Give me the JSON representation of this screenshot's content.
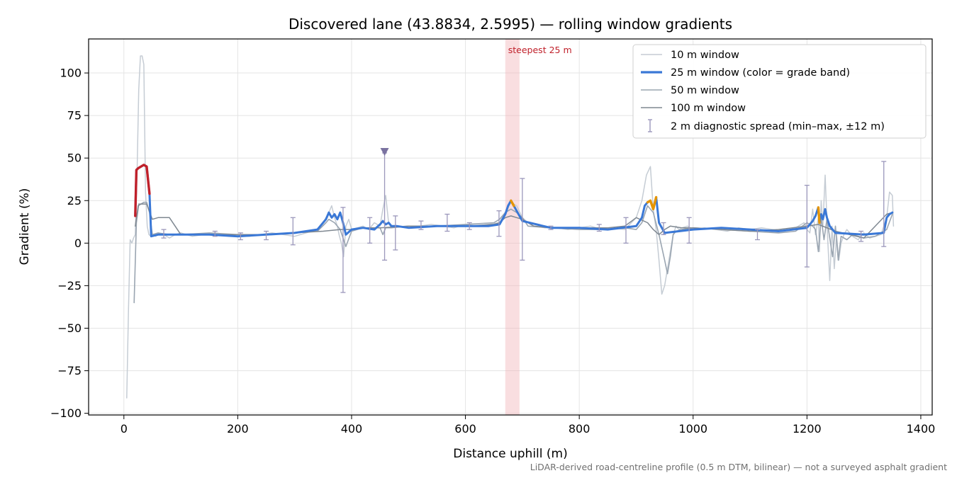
{
  "chart_data": {
    "type": "line",
    "title": "Discovered lane (43.8834, 2.5995) — rolling window gradients",
    "xlabel": "Distance uphill (m)",
    "ylabel": "Gradient (%)",
    "xlim": [
      -62,
      1420
    ],
    "ylim": [
      -101,
      120
    ],
    "xticks": [
      0,
      200,
      400,
      600,
      800,
      1000,
      1200,
      1400
    ],
    "yticks": [
      -100,
      -75,
      -50,
      -25,
      0,
      25,
      50,
      75,
      100
    ],
    "xtick_labels": [
      "0",
      "200",
      "400",
      "600",
      "800",
      "1000",
      "1200",
      "1400"
    ],
    "ytick_labels": [
      "−100",
      "−75",
      "−50",
      "−25",
      "0",
      "25",
      "50",
      "75",
      "100"
    ],
    "grid": true,
    "legend_position": "top-right",
    "footnote": "LiDAR-derived road-centreline profile (0.5 m DTM, bilinear) — not a surveyed asphalt gradient",
    "annotation": {
      "label": "steepest 25 m",
      "x_start": 670,
      "x_end": 695
    },
    "marker": {
      "x": 458,
      "y": 53
    },
    "colors": {
      "w10": "#c5ccd4",
      "w25": "#3a78d6",
      "w50": "#9aa5b1",
      "w100": "#7f8891",
      "steep": "#c0202a",
      "moderate": "#e59400",
      "errorbar": "#9b97bb",
      "band": "#f2b6ba"
    },
    "series": [
      {
        "name": "10 m window",
        "x": [
          5,
          8,
          11,
          14,
          17,
          20,
          23,
          26,
          29,
          32,
          35,
          38,
          41,
          44,
          48,
          52,
          56,
          60,
          70,
          80,
          90,
          100,
          110,
          120,
          140,
          160,
          180,
          200,
          220,
          240,
          260,
          280,
          300,
          320,
          340,
          350,
          360,
          365,
          370,
          375,
          378,
          382,
          386,
          390,
          395,
          400,
          410,
          420,
          430,
          440,
          450,
          455,
          460,
          465,
          470,
          480,
          500,
          520,
          540,
          560,
          580,
          600,
          620,
          640,
          660,
          670,
          680,
          690,
          700,
          710,
          720,
          740,
          760,
          780,
          800,
          820,
          840,
          860,
          880,
          900,
          910,
          918,
          925,
          930,
          935,
          940,
          945,
          950,
          955,
          960,
          965,
          970,
          975,
          980,
          990,
          1000,
          1020,
          1040,
          1060,
          1080,
          1100,
          1120,
          1140,
          1160,
          1180,
          1195,
          1200,
          1205,
          1210,
          1215,
          1220,
          1222,
          1225,
          1228,
          1232,
          1236,
          1240,
          1244,
          1248,
          1252,
          1256,
          1260,
          1265,
          1270,
          1280,
          1290,
          1300,
          1310,
          1320,
          1330,
          1340,
          1345,
          1350,
          1352
        ],
        "values": [
          -91,
          -40,
          2,
          0,
          3,
          5,
          40,
          90,
          110,
          110,
          105,
          30,
          10,
          5,
          4,
          5,
          4,
          6,
          5,
          3,
          5,
          6,
          5,
          4,
          5,
          6,
          5,
          4,
          4,
          5,
          6,
          5,
          4,
          6,
          8,
          12,
          18,
          22,
          15,
          10,
          5,
          0,
          -8,
          10,
          14,
          8,
          9,
          10,
          8,
          12,
          10,
          20,
          28,
          12,
          9,
          10,
          9,
          10,
          11,
          10,
          9,
          11,
          10,
          11,
          12,
          18,
          24,
          22,
          15,
          12,
          10,
          9,
          9,
          8,
          9,
          10,
          8,
          9,
          8,
          15,
          25,
          40,
          45,
          20,
          8,
          -10,
          -30,
          -25,
          -15,
          -5,
          5,
          10,
          8,
          9,
          10,
          8,
          9,
          8,
          7,
          9,
          8,
          9,
          8,
          7,
          9,
          12,
          8,
          6,
          20,
          5,
          15,
          -5,
          25,
          10,
          40,
          5,
          -22,
          10,
          -15,
          5,
          -10,
          0,
          5,
          8,
          4,
          2,
          6,
          3,
          4,
          5,
          15,
          30,
          28,
          10
        ]
      },
      {
        "name": "25 m window (color = grade band)",
        "x": [
          20,
          22,
          25,
          30,
          35,
          40,
          45,
          48,
          60,
          80,
          100,
          150,
          200,
          250,
          300,
          340,
          355,
          360,
          365,
          370,
          375,
          380,
          385,
          390,
          400,
          420,
          440,
          450,
          455,
          460,
          465,
          470,
          480,
          500,
          550,
          600,
          640,
          660,
          670,
          675,
          680,
          685,
          690,
          695,
          700,
          750,
          800,
          850,
          900,
          910,
          915,
          920,
          925,
          930,
          935,
          940,
          950,
          1000,
          1050,
          1100,
          1150,
          1200,
          1210,
          1215,
          1220,
          1222,
          1225,
          1228,
          1232,
          1235,
          1240,
          1250,
          1300,
          1335,
          1340,
          1345,
          1350
        ],
        "values": [
          16,
          43,
          44,
          45,
          46,
          45,
          29,
          4,
          5,
          5,
          5,
          5,
          4,
          5,
          6,
          8,
          14,
          18,
          15,
          17,
          14,
          18,
          12,
          5,
          8,
          9,
          8,
          11,
          13,
          11,
          12,
          10,
          10,
          9,
          10,
          10,
          10,
          11,
          17,
          22,
          25,
          22,
          19,
          16,
          13,
          9,
          9,
          8,
          10,
          15,
          22,
          24,
          25,
          20,
          27,
          12,
          6,
          8,
          9,
          8,
          7,
          9,
          13,
          16,
          21,
          12,
          17,
          14,
          20,
          15,
          10,
          6,
          5,
          6,
          15,
          17,
          18
        ],
        "band": [
          {
            "x_from": 20,
            "x_to": 45,
            "level": "steep"
          },
          {
            "x_from": 677,
            "x_to": 686,
            "level": "moderate"
          },
          {
            "x_from": 920,
            "x_to": 935,
            "level": "moderate"
          },
          {
            "x_from": 932,
            "x_to": 936,
            "level": "steep"
          },
          {
            "x_from": 1219,
            "x_to": 1223,
            "level": "moderate"
          }
        ]
      },
      {
        "name": "50 m window",
        "x": [
          18,
          22,
          26,
          30,
          35,
          40,
          45,
          50,
          60,
          80,
          100,
          150,
          200,
          250,
          300,
          340,
          355,
          360,
          370,
          380,
          385,
          390,
          400,
          420,
          450,
          455,
          460,
          470,
          500,
          550,
          600,
          650,
          660,
          670,
          680,
          690,
          700,
          710,
          750,
          800,
          850,
          880,
          900,
          910,
          920,
          930,
          940,
          950,
          955,
          960,
          965,
          970,
          980,
          1000,
          1050,
          1100,
          1150,
          1180,
          1200,
          1210,
          1215,
          1220,
          1225,
          1230,
          1235,
          1240,
          1245,
          1250,
          1255,
          1260,
          1270,
          1280,
          1300,
          1320,
          1340,
          1350
        ],
        "values": [
          -35,
          12,
          23,
          23,
          24,
          24,
          18,
          5,
          6,
          5,
          5,
          6,
          5,
          5,
          6,
          7,
          12,
          14,
          12,
          8,
          3,
          -2,
          7,
          9,
          9,
          5,
          9,
          9,
          10,
          10,
          11,
          12,
          14,
          18,
          20,
          18,
          15,
          10,
          9,
          8,
          8,
          9,
          8,
          12,
          22,
          18,
          5,
          -10,
          -18,
          -8,
          5,
          7,
          8,
          9,
          8,
          7,
          6,
          7,
          12,
          10,
          8,
          -5,
          15,
          2,
          14,
          3,
          -8,
          10,
          -10,
          4,
          2,
          5,
          3,
          4,
          8,
          17
        ]
      },
      {
        "name": "100 m window",
        "x": [
          20,
          25,
          30,
          40,
          50,
          60,
          80,
          100,
          150,
          200,
          250,
          300,
          350,
          380,
          400,
          420,
          450,
          500,
          550,
          600,
          650,
          660,
          670,
          680,
          690,
          700,
          720,
          750,
          800,
          850,
          880,
          900,
          920,
          930,
          940,
          950,
          960,
          980,
          1000,
          1050,
          1100,
          1150,
          1200,
          1220,
          1250,
          1300,
          1340,
          1350
        ],
        "values": [
          10,
          22,
          23,
          23,
          14,
          15,
          15,
          5,
          5,
          5,
          5,
          6,
          7,
          8,
          8,
          9,
          9,
          10,
          10,
          10,
          11,
          12,
          15,
          16,
          15,
          14,
          10,
          9,
          9,
          9,
          10,
          15,
          12,
          8,
          5,
          8,
          10,
          9,
          9,
          8,
          7,
          8,
          10,
          11,
          7,
          3,
          17,
          18
        ]
      }
    ],
    "error_bars": {
      "label": "2 m diagnostic spread (min–max, ±12 m)",
      "points": [
        {
          "x": 70,
          "low": 3,
          "high": 8
        },
        {
          "x": 160,
          "low": 4,
          "high": 7
        },
        {
          "x": 205,
          "low": 2,
          "high": 6
        },
        {
          "x": 250,
          "low": 2,
          "high": 7
        },
        {
          "x": 297,
          "low": -1,
          "high": 15
        },
        {
          "x": 385,
          "low": -29,
          "high": 21
        },
        {
          "x": 432,
          "low": 0,
          "high": 15
        },
        {
          "x": 458,
          "low": -10,
          "high": 53
        },
        {
          "x": 477,
          "low": -4,
          "high": 16
        },
        {
          "x": 522,
          "low": 8,
          "high": 13
        },
        {
          "x": 568,
          "low": 7,
          "high": 17
        },
        {
          "x": 607,
          "low": 8,
          "high": 12
        },
        {
          "x": 659,
          "low": 4,
          "high": 19
        },
        {
          "x": 700,
          "low": -10,
          "high": 38
        },
        {
          "x": 750,
          "low": 8,
          "high": 10
        },
        {
          "x": 835,
          "low": 7,
          "high": 11
        },
        {
          "x": 882,
          "low": 0,
          "high": 15
        },
        {
          "x": 948,
          "low": 5,
          "high": 12
        },
        {
          "x": 993,
          "low": 0,
          "high": 15
        },
        {
          "x": 1113,
          "low": 2,
          "high": 8
        },
        {
          "x": 1200,
          "low": -14,
          "high": 34
        },
        {
          "x": 1295,
          "low": 1,
          "high": 7
        },
        {
          "x": 1335,
          "low": -2,
          "high": 48
        }
      ]
    }
  }
}
